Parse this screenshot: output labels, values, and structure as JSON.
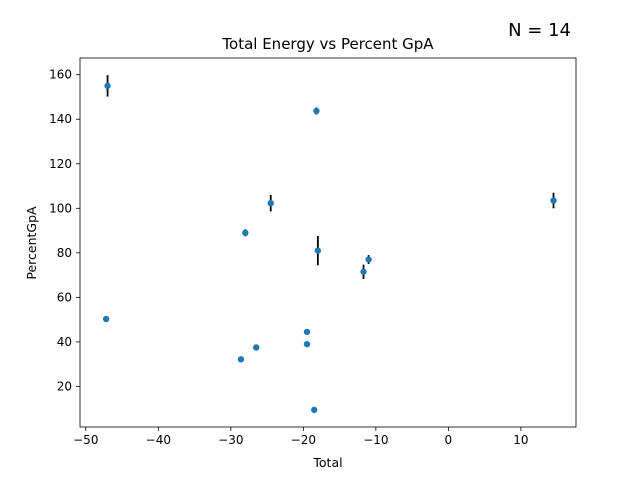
{
  "annotation": "N = 14",
  "chart_data": {
    "type": "scatter",
    "title": "Total Energy vs Percent GpA",
    "xlabel": "Total",
    "ylabel": "PercentGpA",
    "xlim": [
      -50.8,
      17.6
    ],
    "ylim": [
      1.8,
      167.5
    ],
    "xticks": [
      -50,
      -40,
      -30,
      -20,
      -10,
      0,
      10
    ],
    "yticks": [
      20,
      40,
      60,
      80,
      100,
      120,
      140,
      160
    ],
    "grid": false,
    "color": "#1f77b4",
    "errorbar_color": "#000000",
    "series": [
      {
        "points": [
          {
            "x": -47.0,
            "y": 155.0,
            "err": 4.8
          },
          {
            "x": -18.2,
            "y": 143.7,
            "err": 1.6
          },
          {
            "x": 14.5,
            "y": 103.5,
            "err": 3.5
          },
          {
            "x": -24.5,
            "y": 102.3,
            "err": 3.7
          },
          {
            "x": -28.0,
            "y": 89.0,
            "err": 1.6
          },
          {
            "x": -18.0,
            "y": 81.0,
            "err": 6.6
          },
          {
            "x": -11.0,
            "y": 77.0,
            "err": 2.0
          },
          {
            "x": -11.7,
            "y": 71.5,
            "err": 3.2
          },
          {
            "x": -47.2,
            "y": 50.3,
            "err": 1.0
          },
          {
            "x": -19.5,
            "y": 44.5,
            "err": 0.6
          },
          {
            "x": -19.5,
            "y": 39.0,
            "err": 0.5
          },
          {
            "x": -26.5,
            "y": 37.5,
            "err": 1.1
          },
          {
            "x": -28.6,
            "y": 32.2,
            "err": 1.2
          },
          {
            "x": -18.5,
            "y": 9.5,
            "err": 1.0
          }
        ]
      }
    ]
  }
}
